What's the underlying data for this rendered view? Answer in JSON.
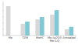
{
  "chart_data": {
    "type": "bar",
    "categories": [
      "Mo",
      "TZM",
      "MoHC",
      "Mo-La2O3\nMo-ILQ",
      "Annealed"
    ],
    "series": [
      {
        "color": "#d8d8d8",
        "values": [
          9.5,
          3.8,
          5.2,
          6.8,
          2.0
        ]
      },
      {
        "color": "#7fc8d4",
        "values": [
          0.0,
          4.5,
          6.0,
          8.2,
          2.8
        ]
      }
    ],
    "ylim": [
      0,
      11
    ],
    "yticks": [
      0,
      2,
      4,
      6,
      8,
      10
    ],
    "tick_labels": "x",
    "grid": false
  }
}
